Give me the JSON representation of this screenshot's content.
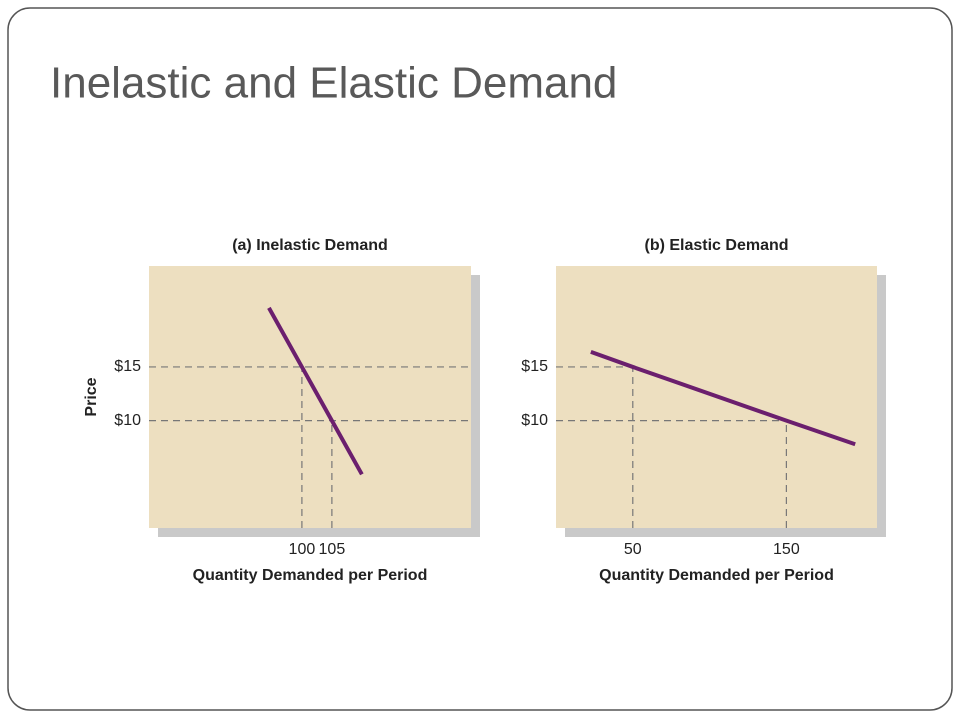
{
  "title": "Inelastic and Elastic Demand",
  "chart_data": [
    {
      "type": "line",
      "title": "(a) Inelastic Demand",
      "xlabel": "Quantity Demanded per Period",
      "ylabel": "Price",
      "x": [
        94.5,
        100,
        105,
        110
      ],
      "values": [
        20.5,
        15,
        10,
        5
      ],
      "color": "#6b1f6e",
      "xlim": [
        74.5,
        128.2
      ],
      "ylim": [
        0,
        24.4
      ],
      "xticks": [
        100,
        105
      ],
      "yticks": [
        {
          "value": 15,
          "label": "$15"
        },
        {
          "value": 10,
          "label": "$10"
        }
      ]
    },
    {
      "type": "line",
      "title": "(b) Elastic Demand",
      "xlabel": "Quantity Demanded per Period",
      "x": [
        22.7,
        50,
        150,
        194.8
      ],
      "values": [
        16.4,
        15,
        10,
        7.8
      ],
      "color": "#6b1f6e",
      "xlim": [
        0,
        209
      ],
      "ylim": [
        0,
        24.4
      ],
      "xticks": [
        50,
        150
      ],
      "yticks": [
        {
          "value": 15,
          "label": "$15"
        },
        {
          "value": 10,
          "label": "$10"
        }
      ]
    }
  ]
}
